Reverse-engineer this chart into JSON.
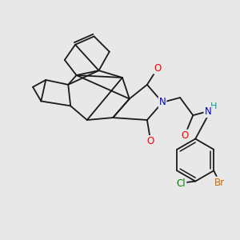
{
  "background_color": "#e8e8e8",
  "bond_color": "#1a1a1a",
  "atom_colors": {
    "O": "#ff0000",
    "N": "#0000cc",
    "H": "#009999",
    "Cl": "#008000",
    "Br": "#cc6600"
  },
  "line_width": 1.3,
  "fontsize": 8.5
}
